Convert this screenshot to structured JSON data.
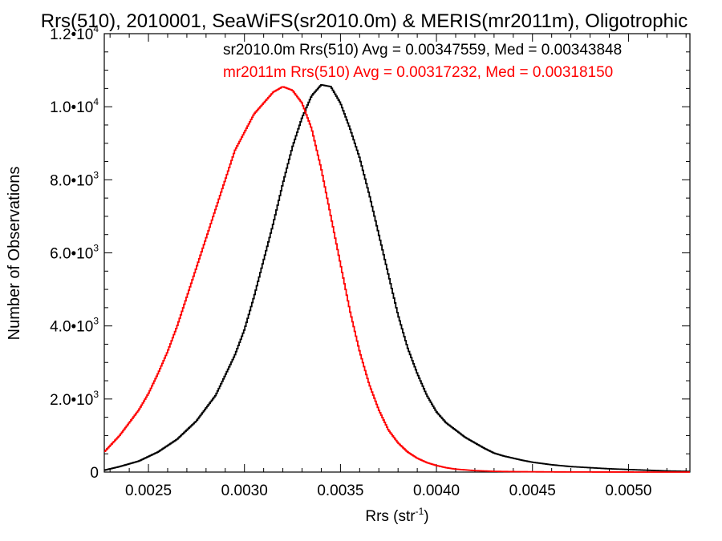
{
  "chart_data": {
    "type": "step",
    "title": "Rrs(510), 2010001, SeaWiFS(sr2010.0m) & MERIS(mr2011m), Oligotrophic",
    "xlabel_base": "Rrs (str",
    "xlabel_sup": "-1",
    "xlabel_close": ")",
    "ylabel": "Number of Observations",
    "xlim": [
      0.00227,
      0.00532
    ],
    "ylim": [
      0,
      12000
    ],
    "xticks": [
      {
        "value": 0.0025,
        "label": "0.0025"
      },
      {
        "value": 0.003,
        "label": "0.0030"
      },
      {
        "value": 0.0035,
        "label": "0.0035"
      },
      {
        "value": 0.004,
        "label": "0.0040"
      },
      {
        "value": 0.0045,
        "label": "0.0045"
      },
      {
        "value": 0.005,
        "label": "0.0050"
      }
    ],
    "yticks": [
      {
        "value": 0,
        "mant": "0",
        "exp": ""
      },
      {
        "value": 2000,
        "mant": "2.0•10",
        "exp": "3"
      },
      {
        "value": 4000,
        "mant": "4.0•10",
        "exp": "3"
      },
      {
        "value": 6000,
        "mant": "6.0•10",
        "exp": "3"
      },
      {
        "value": 8000,
        "mant": "8.0•10",
        "exp": "3"
      },
      {
        "value": 10000,
        "mant": "1.0•10",
        "exp": "4"
      },
      {
        "value": 12000,
        "mant": "1.2•10",
        "exp": "4"
      }
    ],
    "legend": [
      {
        "text": "sr2010.0m Rrs(510) Avg = 0.00347559, Med = 0.00343848",
        "color": "#000000"
      },
      {
        "text": "mr2011m Rrs(510) Avg = 0.00317232, Med = 0.00318150",
        "color": "#ff0000"
      }
    ],
    "series": [
      {
        "name": "sr2010.0m",
        "color": "#000000",
        "x": [
          0.00227,
          0.00235,
          0.00245,
          0.00255,
          0.00265,
          0.00275,
          0.00285,
          0.00295,
          0.003,
          0.00305,
          0.0031,
          0.00315,
          0.0032,
          0.00325,
          0.0033,
          0.00335,
          0.0034,
          0.00345,
          0.0035,
          0.00355,
          0.0036,
          0.00365,
          0.0037,
          0.00375,
          0.0038,
          0.00385,
          0.0039,
          0.00395,
          0.004,
          0.00405,
          0.0041,
          0.00415,
          0.0042,
          0.00425,
          0.0043,
          0.00435,
          0.0044,
          0.00445,
          0.0045,
          0.0046,
          0.0047,
          0.0048,
          0.0049,
          0.005,
          0.0051,
          0.0052,
          0.0053,
          0.00532
        ],
        "y": [
          50,
          150,
          300,
          550,
          900,
          1400,
          2100,
          3200,
          3900,
          4800,
          5800,
          6800,
          7900,
          8900,
          9700,
          10300,
          10600,
          10550,
          10100,
          9400,
          8600,
          7600,
          6500,
          5400,
          4300,
          3400,
          2700,
          2100,
          1650,
          1350,
          1150,
          950,
          800,
          650,
          520,
          440,
          380,
          320,
          270,
          200,
          150,
          120,
          90,
          70,
          50,
          30,
          20,
          15
        ]
      },
      {
        "name": "mr2011m",
        "color": "#ff0000",
        "x": [
          0.00227,
          0.00235,
          0.0024,
          0.00245,
          0.0025,
          0.00255,
          0.0026,
          0.00265,
          0.0027,
          0.00275,
          0.0028,
          0.00285,
          0.0029,
          0.00295,
          0.003,
          0.00305,
          0.0031,
          0.00315,
          0.0032,
          0.00325,
          0.0033,
          0.00335,
          0.0034,
          0.00345,
          0.0035,
          0.00355,
          0.0036,
          0.00365,
          0.0037,
          0.00375,
          0.0038,
          0.00385,
          0.0039,
          0.00395,
          0.004,
          0.00405,
          0.0041,
          0.00415,
          0.0042,
          0.00425,
          0.0043,
          0.0044,
          0.0045,
          0.0046,
          0.0047,
          0.0048,
          0.0049,
          0.005,
          0.0051,
          0.00532
        ],
        "y": [
          550,
          1000,
          1350,
          1700,
          2150,
          2700,
          3300,
          4000,
          4800,
          5600,
          6400,
          7200,
          8000,
          8800,
          9300,
          9800,
          10100,
          10400,
          10550,
          10450,
          10100,
          9400,
          8300,
          7000,
          5700,
          4400,
          3300,
          2400,
          1700,
          1150,
          800,
          550,
          380,
          260,
          180,
          120,
          80,
          60,
          40,
          30,
          20,
          12,
          8,
          5,
          3,
          2,
          1,
          1,
          0,
          0
        ]
      }
    ]
  }
}
